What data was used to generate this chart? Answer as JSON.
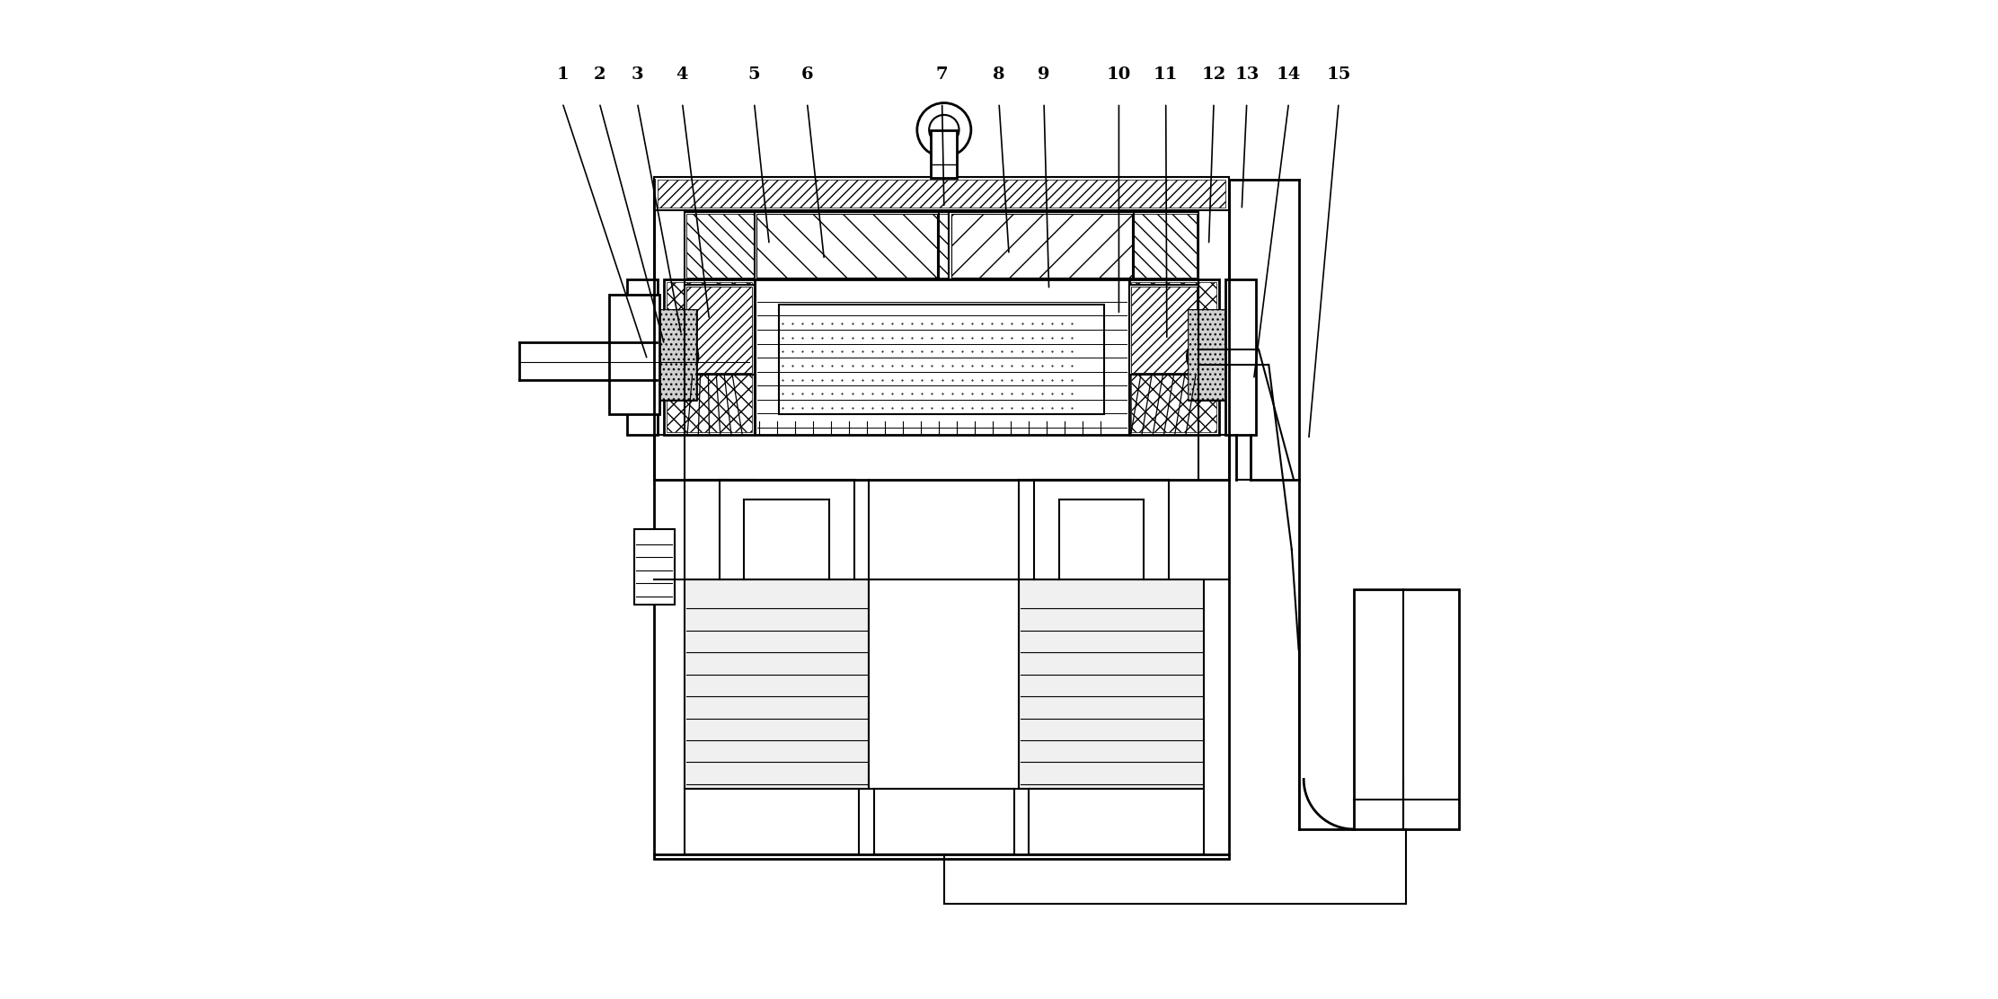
{
  "title": "",
  "bg_color": "#ffffff",
  "line_color": "#000000",
  "labels": [
    "1",
    "2",
    "3",
    "4",
    "5",
    "6",
    "7",
    "8",
    "9",
    "10",
    "11",
    "12",
    "13",
    "14",
    "15"
  ],
  "figsize": [
    22.24,
    11.12
  ],
  "dpi": 100
}
